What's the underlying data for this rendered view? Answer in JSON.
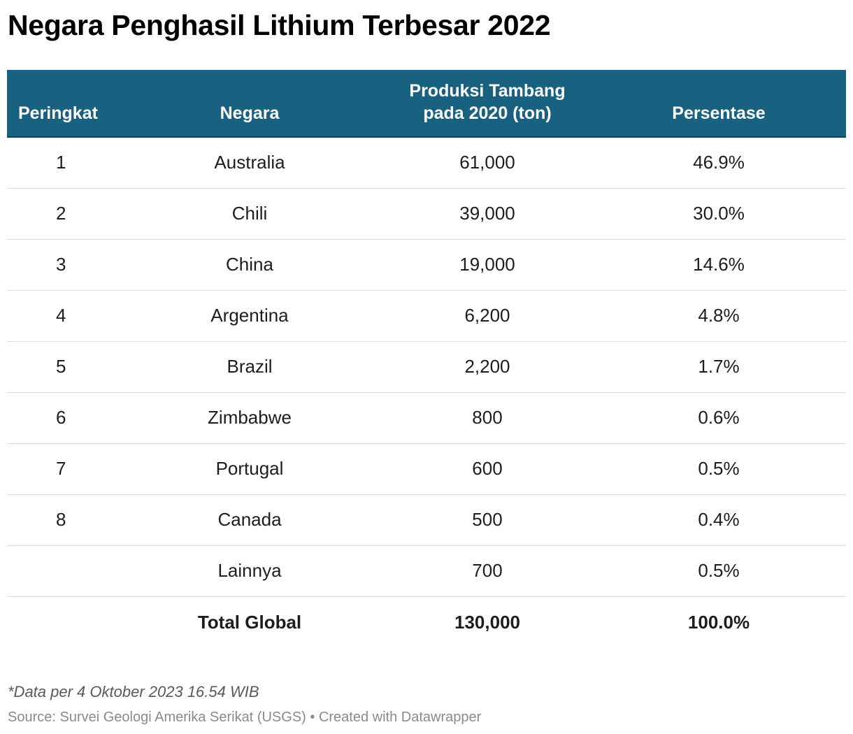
{
  "title": "Negara Penghasil Lithium Terbesar 2022",
  "header": {
    "rank": "Peringkat",
    "country": "Negara",
    "production_line1": "Produksi Tambang",
    "production_line2": "pada 2020 (ton)",
    "percentage": "Persentase"
  },
  "rows": [
    {
      "rank": "1",
      "country": "Australia",
      "production": "61,000",
      "percentage": "46.9%"
    },
    {
      "rank": "2",
      "country": "Chili",
      "production": "39,000",
      "percentage": "30.0%"
    },
    {
      "rank": "3",
      "country": "China",
      "production": "19,000",
      "percentage": "14.6%"
    },
    {
      "rank": "4",
      "country": "Argentina",
      "production": "6,200",
      "percentage": "4.8%"
    },
    {
      "rank": "5",
      "country": "Brazil",
      "production": "2,200",
      "percentage": "1.7%"
    },
    {
      "rank": "6",
      "country": "Zimbabwe",
      "production": "800",
      "percentage": "0.6%"
    },
    {
      "rank": "7",
      "country": "Portugal",
      "production": "600",
      "percentage": "0.5%"
    },
    {
      "rank": "8",
      "country": "Canada",
      "production": "500",
      "percentage": "0.4%"
    },
    {
      "rank": "",
      "country": "Lainnya",
      "production": "700",
      "percentage": "0.5%"
    }
  ],
  "total": {
    "label": "Total Global",
    "production": "130,000",
    "percentage": "100.0%"
  },
  "note": "*Data per 4 Oktober 2023 16.54 WIB",
  "source": "Source: Survei Geologi Amerika Serikat (USGS) • Created with Datawrapper",
  "colors": {
    "header_bg": "#186180",
    "header_text": "#ffffff",
    "row_divider": "#dddddd"
  },
  "chart_data": {
    "type": "table",
    "title": "Negara Penghasil Lithium Terbesar 2022",
    "columns": [
      "Peringkat",
      "Negara",
      "Produksi Tambang pada 2020 (ton)",
      "Persentase"
    ],
    "rows": [
      [
        "1",
        "Australia",
        61000,
        "46.9%"
      ],
      [
        "2",
        "Chili",
        39000,
        "30.0%"
      ],
      [
        "3",
        "China",
        19000,
        "14.6%"
      ],
      [
        "4",
        "Argentina",
        6200,
        "4.8%"
      ],
      [
        "5",
        "Brazil",
        2200,
        "1.7%"
      ],
      [
        "6",
        "Zimbabwe",
        800,
        "0.6%"
      ],
      [
        "7",
        "Portugal",
        600,
        "0.5%"
      ],
      [
        "8",
        "Canada",
        500,
        "0.4%"
      ],
      [
        "",
        "Lainnya",
        700,
        "0.5%"
      ],
      [
        "",
        "Total Global",
        130000,
        "100.0%"
      ]
    ]
  }
}
